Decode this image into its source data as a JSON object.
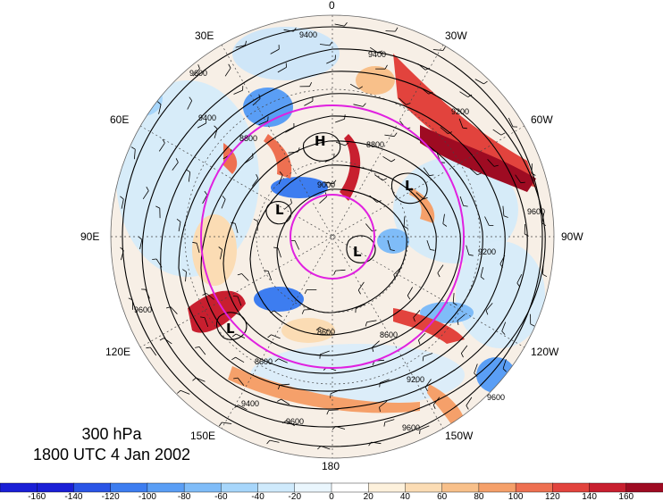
{
  "caption": {
    "level": "300 hPa",
    "time": "1800 UTC 4 Jan 2002"
  },
  "longitude_labels": {
    "top": "0",
    "bottom": "180",
    "left": "90E",
    "right": "90W",
    "upper_left_30": "30E",
    "upper_left_60": "60E",
    "lower_left_120": "120E",
    "lower_left_150": "150E",
    "upper_right_30": "30W",
    "upper_right_60": "60W",
    "lower_right_120": "120W",
    "lower_right_150": "150W"
  },
  "contour_labels": [
    "9400",
    "9400",
    "9600",
    "8800",
    "8800",
    "9200",
    "9600",
    "9000",
    "8600",
    "8600",
    "9600",
    "9200",
    "9600",
    "9400",
    "9400",
    "9600",
    "9200",
    "9600",
    "8600"
  ],
  "pressure_centers": [
    {
      "symbol": "H",
      "region": "north-center"
    },
    {
      "symbol": "L",
      "region": "east-of-pole"
    },
    {
      "symbol": "L",
      "region": "west-of-pole"
    },
    {
      "symbol": "L",
      "region": "near-pole"
    },
    {
      "symbol": "L",
      "region": "lower-left"
    }
  ],
  "colorbar": {
    "ticks": [
      "-160",
      "-140",
      "-120",
      "-100",
      "-80",
      "-60",
      "-40",
      "-20",
      "0",
      "20",
      "40",
      "60",
      "80",
      "100",
      "120",
      "140",
      "160"
    ],
    "colors": [
      "#1a1fd6",
      "#2a54e6",
      "#3d7df0",
      "#5a9ef5",
      "#7fbcf8",
      "#a7d6fb",
      "#cfeafc",
      "#eaf6fd",
      "#ffffff",
      "#fdf1dc",
      "#fbdcb4",
      "#f8c08a",
      "#f5a06a",
      "#ee7051",
      "#e2433d",
      "#c81f2f",
      "#9e0b22"
    ]
  },
  "accents": {
    "circle_color": "#e020e0",
    "contour_color": "#000000"
  }
}
